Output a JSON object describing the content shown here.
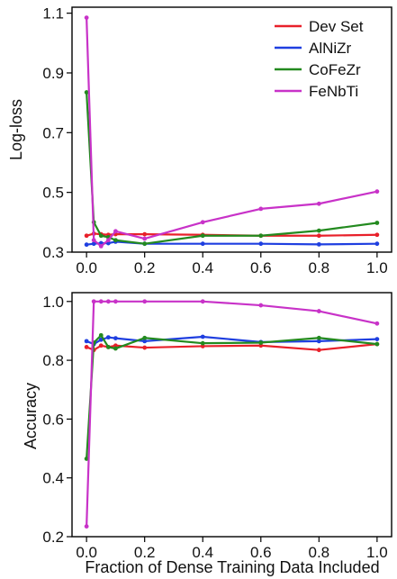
{
  "chart_data": [
    {
      "type": "line",
      "title": "",
      "xlabel": "",
      "ylabel": "Log-loss",
      "xlim": [
        -0.05,
        1.05
      ],
      "ylim": [
        0.3,
        1.12
      ],
      "xticks": [
        "0.0",
        "0.2",
        "0.4",
        "0.6",
        "0.8",
        "1.0"
      ],
      "yticks": [
        "0.3",
        "0.5",
        "0.7",
        "0.9",
        "1.1"
      ],
      "x": [
        0.0,
        0.025,
        0.05,
        0.075,
        0.1,
        0.2,
        0.4,
        0.6,
        0.8,
        1.0
      ],
      "grid": false,
      "legend": "top-right",
      "series": [
        {
          "name": "Dev Set",
          "color": "#e8202a",
          "values": [
            0.355,
            0.362,
            0.36,
            0.358,
            0.36,
            0.36,
            0.358,
            0.355,
            0.355,
            0.358
          ]
        },
        {
          "name": "AlNiZr",
          "color": "#1f3fe0",
          "values": [
            0.325,
            0.328,
            0.33,
            0.33,
            0.335,
            0.328,
            0.328,
            0.328,
            0.326,
            0.328
          ]
        },
        {
          "name": "CoFeZr",
          "color": "#238a1f",
          "values": [
            0.835,
            0.4,
            0.355,
            0.35,
            0.34,
            0.328,
            0.355,
            0.355,
            0.372,
            0.398
          ]
        },
        {
          "name": "FeNbTi",
          "color": "#c832c8",
          "values": [
            1.085,
            0.34,
            0.32,
            0.34,
            0.37,
            0.345,
            0.4,
            0.445,
            0.462,
            0.503
          ]
        }
      ]
    },
    {
      "type": "line",
      "title": "",
      "xlabel": "Fraction of Dense Training Data Included",
      "ylabel": "Accuracy",
      "xlim": [
        -0.05,
        1.05
      ],
      "ylim": [
        0.2,
        1.03
      ],
      "xticks": [
        "0.0",
        "0.2",
        "0.4",
        "0.6",
        "0.8",
        "1.0"
      ],
      "yticks": [
        "0.2",
        "0.4",
        "0.6",
        "0.8",
        "1.0"
      ],
      "x": [
        0.0,
        0.025,
        0.05,
        0.075,
        0.1,
        0.2,
        0.4,
        0.6,
        0.8,
        1.0
      ],
      "grid": false,
      "series": [
        {
          "name": "Dev Set",
          "color": "#e8202a",
          "values": [
            0.845,
            0.835,
            0.85,
            0.845,
            0.85,
            0.843,
            0.848,
            0.85,
            0.835,
            0.855
          ]
        },
        {
          "name": "AlNiZr",
          "color": "#1f3fe0",
          "values": [
            0.865,
            0.855,
            0.87,
            0.878,
            0.875,
            0.865,
            0.88,
            0.862,
            0.865,
            0.872
          ]
        },
        {
          "name": "CoFeZr",
          "color": "#238a1f",
          "values": [
            0.465,
            0.86,
            0.885,
            0.845,
            0.84,
            0.876,
            0.858,
            0.86,
            0.876,
            0.855
          ]
        },
        {
          "name": "FeNbTi",
          "color": "#c832c8",
          "values": [
            0.235,
            1.0,
            1.0,
            1.0,
            1.0,
            1.0,
            1.0,
            0.987,
            0.967,
            0.925
          ]
        }
      ]
    }
  ]
}
